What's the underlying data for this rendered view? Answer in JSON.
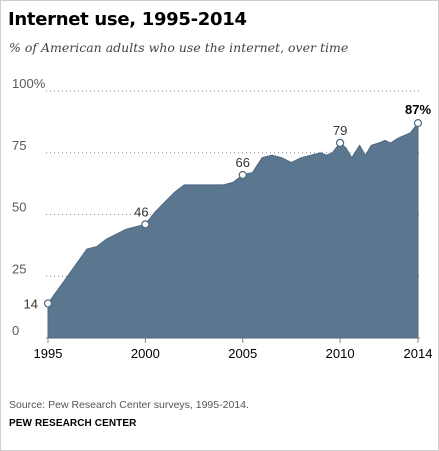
{
  "chart_data": {
    "type": "area",
    "title": "Internet use, 1995-2014",
    "subtitle": "% of American adults who use the internet, over time",
    "xlabel": "",
    "ylabel": "",
    "xlim": [
      1995,
      2014
    ],
    "ylim": [
      0,
      100
    ],
    "x_ticks": [
      "1995",
      "2000",
      "2005",
      "2010",
      "2014"
    ],
    "y_ticks": [
      "0",
      "25",
      "50",
      "75",
      "100%"
    ],
    "grid": true,
    "color": "#5b778f",
    "x": [
      1995,
      1996,
      1997,
      1997.5,
      1998,
      1999,
      2000,
      2000.5,
      2001,
      2001.5,
      2002,
      2002.5,
      2003,
      2003.5,
      2004,
      2004.5,
      2005,
      2005.5,
      2006,
      2006.5,
      2007,
      2007.5,
      2008,
      2008.5,
      2009,
      2009.3,
      2009.6,
      2010,
      2010.3,
      2010.6,
      2011,
      2011.3,
      2011.6,
      2012,
      2012.3,
      2012.6,
      2013,
      2013.3,
      2013.6,
      2014
    ],
    "values": [
      14,
      25,
      36,
      37,
      40,
      44,
      46,
      51,
      55,
      59,
      62,
      62,
      62,
      62,
      62,
      63,
      66,
      67,
      73,
      74,
      73,
      71,
      73,
      74,
      75,
      74,
      75,
      79,
      77,
      73,
      78,
      74,
      78,
      79,
      80,
      79,
      81,
      82,
      83,
      87
    ],
    "annotations": [
      {
        "label": "14",
        "x": 1995,
        "y": 14,
        "bold": false
      },
      {
        "label": "46",
        "x": 2000,
        "y": 46,
        "bold": false
      },
      {
        "label": "66",
        "x": 2005,
        "y": 66,
        "bold": false
      },
      {
        "label": "79",
        "x": 2010,
        "y": 79,
        "bold": false
      },
      {
        "label": "87%",
        "x": 2014,
        "y": 87,
        "bold": true
      }
    ]
  },
  "source": "Source: Pew Research Center surveys, 1995-2014.",
  "brand": "PEW RESEARCH CENTER"
}
